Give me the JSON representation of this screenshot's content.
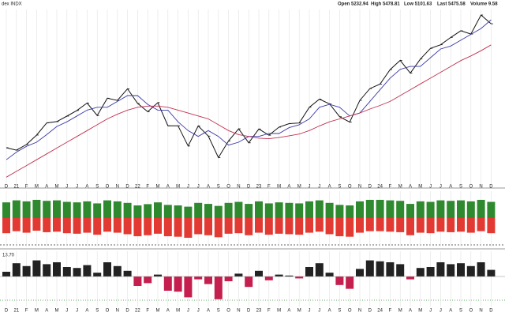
{
  "chart_data": [
    {
      "type": "line",
      "title": "dex INDX",
      "annotations": [
        "Open 5232.94",
        "High 5478.81",
        "Low 5101.63",
        "Last 5475.58",
        "Volume 9.58"
      ],
      "categories": [
        "D",
        "21",
        "F",
        "M",
        "A",
        "M",
        "J",
        "J",
        "A",
        "S",
        "O",
        "N",
        "D",
        "22",
        "F",
        "M",
        "A",
        "M",
        "J",
        "J",
        "A",
        "S",
        "O",
        "N",
        "D",
        "23",
        "F",
        "M",
        "A",
        "M",
        "J",
        "J",
        "A",
        "S",
        "O",
        "N",
        "D",
        "24",
        "F",
        "M",
        "A",
        "M",
        "J",
        "J",
        "A",
        "S",
        "O",
        "N",
        "D"
      ],
      "ylim": [
        3200,
        6100
      ],
      "grid": true,
      "series": [
        {
          "color": "#111111",
          "values": [
            3756,
            3714,
            3811,
            3973,
            4181,
            4204,
            4298,
            4395,
            4523,
            4308,
            4605,
            4567,
            4766,
            4516,
            4374,
            4530,
            4132,
            4132,
            3785,
            4130,
            3955,
            3586,
            3872,
            4080,
            3840,
            4077,
            3970,
            4109,
            4169,
            4180,
            4450,
            4589,
            4508,
            4288,
            4194,
            4568,
            4770,
            4846,
            5096,
            5254,
            5036,
            5278,
            5460,
            5522,
            5648,
            5762,
            5705,
            6032,
            5882
          ]
        },
        {
          "color": "#3a3aa8",
          "values": [
            3550,
            3680,
            3780,
            3850,
            3980,
            4120,
            4200,
            4300,
            4400,
            4450,
            4450,
            4550,
            4650,
            4650,
            4500,
            4400,
            4400,
            4200,
            4050,
            3950,
            4050,
            3950,
            3800,
            3850,
            3950,
            3950,
            4000,
            4000,
            4100,
            4150,
            4250,
            4450,
            4500,
            4450,
            4300,
            4350,
            4550,
            4750,
            4950,
            5100,
            5150,
            5150,
            5300,
            5450,
            5500,
            5600,
            5700,
            5800,
            5950
          ]
        },
        {
          "color": "#c03050",
          "values": [
            3250,
            3350,
            3450,
            3550,
            3650,
            3750,
            3850,
            3950,
            4050,
            4150,
            4250,
            4330,
            4400,
            4450,
            4470,
            4470,
            4450,
            4400,
            4350,
            4300,
            4250,
            4150,
            4050,
            3980,
            3950,
            3920,
            3910,
            3930,
            3960,
            3990,
            4050,
            4130,
            4200,
            4250,
            4300,
            4350,
            4420,
            4480,
            4550,
            4650,
            4750,
            4850,
            4950,
            5050,
            5150,
            5250,
            5330,
            5420,
            5520
          ]
        }
      ]
    },
    {
      "type": "diverging-bar",
      "ylim": [
        -100,
        100
      ],
      "series": [
        {
          "color": "#2f8a2f",
          "values": [
            62,
            70,
            66,
            72,
            68,
            70,
            64,
            62,
            66,
            58,
            70,
            66,
            60,
            50,
            55,
            62,
            52,
            50,
            45,
            60,
            56,
            48,
            60,
            64,
            56,
            66,
            58,
            62,
            60,
            58,
            66,
            70,
            60,
            52,
            50,
            66,
            72,
            72,
            70,
            68,
            56,
            66,
            64,
            70,
            68,
            70,
            66,
            72,
            64
          ]
        },
        {
          "color": "#e23a32",
          "values": [
            -60,
            -52,
            -58,
            -50,
            -56,
            -54,
            -60,
            -62,
            -58,
            -66,
            -54,
            -58,
            -64,
            -72,
            -68,
            -62,
            -72,
            -74,
            -78,
            -64,
            -68,
            -76,
            -62,
            -60,
            -68,
            -58,
            -66,
            -62,
            -64,
            -66,
            -58,
            -54,
            -64,
            -72,
            -74,
            -58,
            -52,
            -52,
            -54,
            -56,
            -68,
            -58,
            -60,
            -54,
            -56,
            -54,
            -58,
            -52,
            -60
          ]
        }
      ]
    },
    {
      "type": "bar",
      "ylim": [
        -60,
        50
      ],
      "annotation": "13.70",
      "positive_color": "#222222",
      "negative_color": "#c41f4e",
      "values": [
        10,
        28,
        22,
        34,
        26,
        30,
        20,
        18,
        24,
        8,
        30,
        22,
        12,
        -20,
        -14,
        4,
        -30,
        -32,
        -44,
        -6,
        -16,
        -48,
        -10,
        6,
        -22,
        12,
        -8,
        4,
        2,
        -4,
        20,
        28,
        8,
        -18,
        -26,
        16,
        34,
        32,
        30,
        26,
        -6,
        18,
        20,
        30,
        26,
        28,
        22,
        30,
        14
      ]
    }
  ]
}
